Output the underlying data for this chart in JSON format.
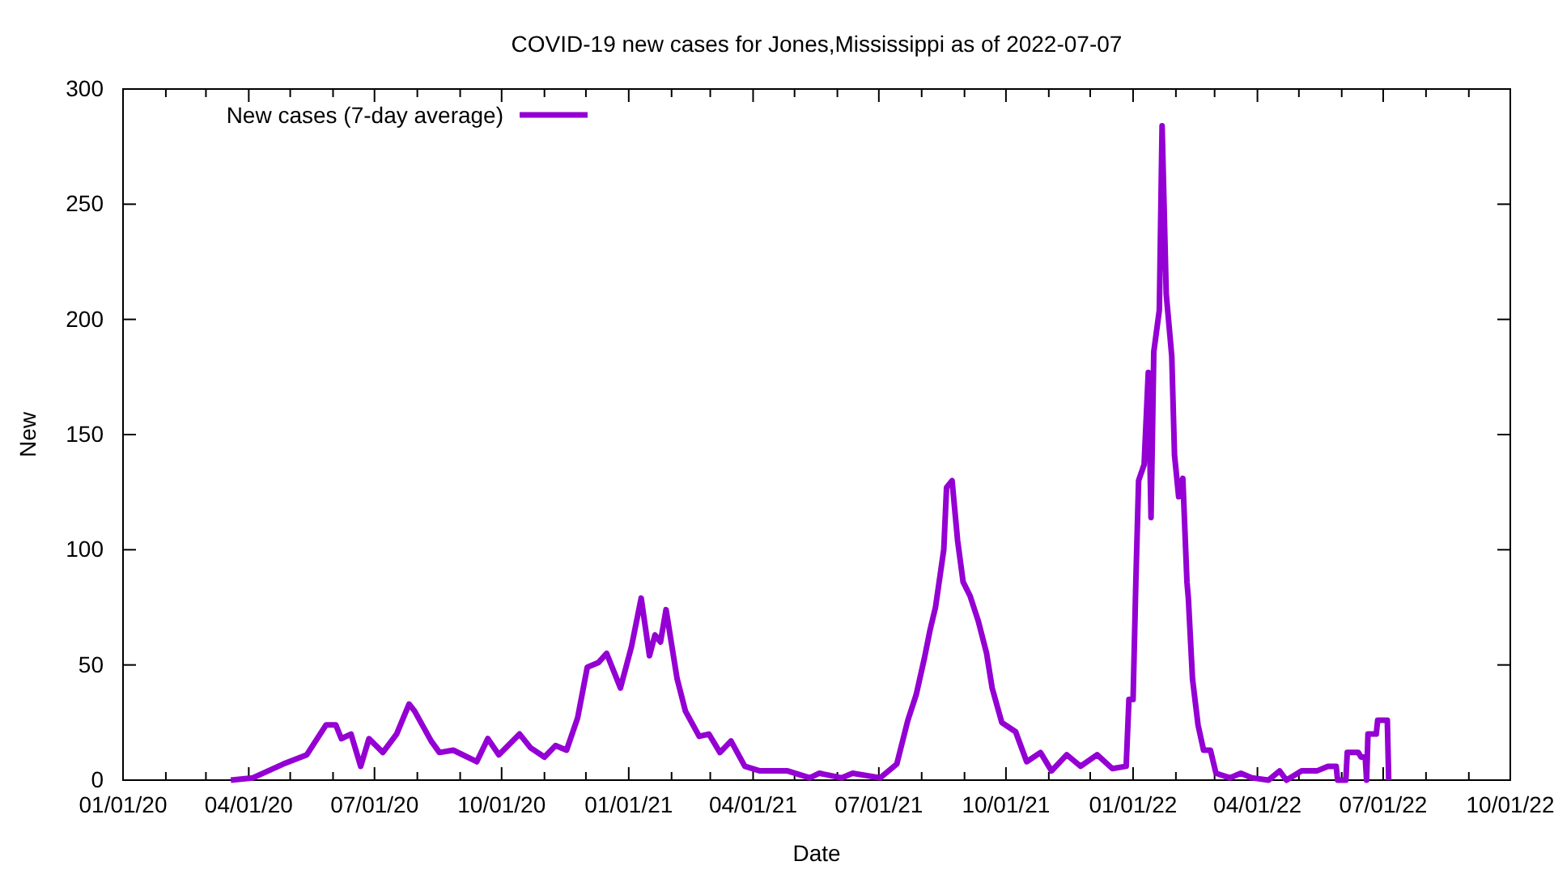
{
  "chart_data": {
    "type": "line",
    "title": "COVID-19 new cases for Jones,Mississippi as of 2022-07-07",
    "xlabel": "Date",
    "ylabel": "New",
    "legend": "top left",
    "grid": false,
    "marker": "none",
    "line_style": "solid",
    "xlim": [
      "2020-01-01",
      "2022-10-01"
    ],
    "xticks": [
      {
        "value": "2020-01-01",
        "label": "01/01/20"
      },
      {
        "value": "2020-02-01",
        "label": null
      },
      {
        "value": "2020-03-01",
        "label": null
      },
      {
        "value": "2020-04-01",
        "label": "04/01/20"
      },
      {
        "value": "2020-05-01",
        "label": null
      },
      {
        "value": "2020-06-01",
        "label": null
      },
      {
        "value": "2020-07-01",
        "label": "07/01/20"
      },
      {
        "value": "2020-08-01",
        "label": null
      },
      {
        "value": "2020-09-01",
        "label": null
      },
      {
        "value": "2020-10-01",
        "label": "10/01/20"
      },
      {
        "value": "2020-11-01",
        "label": null
      },
      {
        "value": "2020-12-01",
        "label": null
      },
      {
        "value": "2021-01-01",
        "label": "01/01/21"
      },
      {
        "value": "2021-02-01",
        "label": null
      },
      {
        "value": "2021-03-01",
        "label": null
      },
      {
        "value": "2021-04-01",
        "label": "04/01/21"
      },
      {
        "value": "2021-05-01",
        "label": null
      },
      {
        "value": "2021-06-01",
        "label": null
      },
      {
        "value": "2021-07-01",
        "label": "07/01/21"
      },
      {
        "value": "2021-08-01",
        "label": null
      },
      {
        "value": "2021-09-01",
        "label": null
      },
      {
        "value": "2021-10-01",
        "label": "10/01/21"
      },
      {
        "value": "2021-11-01",
        "label": null
      },
      {
        "value": "2021-12-01",
        "label": null
      },
      {
        "value": "2022-01-01",
        "label": "01/01/22"
      },
      {
        "value": "2022-02-01",
        "label": null
      },
      {
        "value": "2022-03-01",
        "label": null
      },
      {
        "value": "2022-04-01",
        "label": "04/01/22"
      },
      {
        "value": "2022-05-01",
        "label": null
      },
      {
        "value": "2022-06-01",
        "label": null
      },
      {
        "value": "2022-07-01",
        "label": "07/01/22"
      },
      {
        "value": "2022-08-01",
        "label": null
      },
      {
        "value": "2022-09-01",
        "label": null
      },
      {
        "value": "2022-10-01",
        "label": "10/01/22"
      }
    ],
    "ylim": [
      0,
      300
    ],
    "yticks": [
      0,
      50,
      100,
      150,
      200,
      250,
      300
    ],
    "x": [
      "2020-03-19",
      "2020-04-04",
      "2020-04-26",
      "2020-05-13",
      "2020-05-27",
      "2020-06-03",
      "2020-06-07",
      "2020-06-14",
      "2020-06-21",
      "2020-06-27",
      "2020-07-07",
      "2020-07-17",
      "2020-07-26",
      "2020-07-30",
      "2020-08-11",
      "2020-08-17",
      "2020-08-27",
      "2020-09-13",
      "2020-09-21",
      "2020-09-29",
      "2020-10-14",
      "2020-10-22",
      "2020-11-01",
      "2020-11-09",
      "2020-11-17",
      "2020-11-25",
      "2020-12-02",
      "2020-12-10",
      "2020-12-16",
      "2020-12-26",
      "2021-01-03",
      "2021-01-10",
      "2021-01-16",
      "2021-01-20",
      "2021-01-24",
      "2021-01-28",
      "2021-02-05",
      "2021-02-11",
      "2021-02-21",
      "2021-02-28",
      "2021-03-08",
      "2021-03-16",
      "2021-03-26",
      "2021-04-06",
      "2021-04-26",
      "2021-05-12",
      "2021-05-19",
      "2021-06-04",
      "2021-06-12",
      "2021-07-02",
      "2021-07-14",
      "2021-07-22",
      "2021-07-28",
      "2021-08-03",
      "2021-08-07",
      "2021-08-11",
      "2021-08-17",
      "2021-08-19",
      "2021-08-23",
      "2021-08-27",
      "2021-08-31",
      "2021-09-05",
      "2021-09-11",
      "2021-09-17",
      "2021-09-21",
      "2021-09-28",
      "2021-10-08",
      "2021-10-16",
      "2021-10-26",
      "2021-11-03",
      "2021-11-14",
      "2021-11-24",
      "2021-12-06",
      "2021-12-17",
      "2021-12-27",
      "2021-12-29",
      "2022-01-01",
      "2022-01-03",
      "2022-01-05",
      "2022-01-09",
      "2022-01-12",
      "2022-01-14",
      "2022-01-16",
      "2022-01-20",
      "2022-01-22",
      "2022-01-25",
      "2022-01-29",
      "2022-01-31",
      "2022-02-03",
      "2022-02-06",
      "2022-02-09",
      "2022-02-10",
      "2022-02-13",
      "2022-02-17",
      "2022-02-21",
      "2022-02-26",
      "2022-03-02",
      "2022-03-12",
      "2022-03-20",
      "2022-03-28",
      "2022-04-09",
      "2022-04-17",
      "2022-04-22",
      "2022-05-03",
      "2022-05-14",
      "2022-05-22",
      "2022-05-28",
      "2022-05-29",
      "2022-06-04",
      "2022-06-05",
      "2022-06-13",
      "2022-06-15",
      "2022-06-18",
      "2022-06-19",
      "2022-06-20",
      "2022-06-26",
      "2022-06-27",
      "2022-07-04",
      "2022-07-05"
    ],
    "series": [
      {
        "name": "New cases (7-day average)",
        "color": "#9400d3",
        "values": [
          0,
          1,
          7,
          11,
          24,
          24,
          18,
          20,
          6,
          18,
          12,
          20,
          33,
          30,
          17,
          12,
          13,
          8,
          18,
          11,
          20,
          14,
          10,
          15,
          13,
          27,
          49,
          51,
          55,
          40,
          58,
          79,
          54,
          63,
          60,
          74,
          44,
          30,
          19,
          20,
          12,
          17,
          6,
          4,
          4,
          1,
          3,
          1,
          3,
          1,
          7,
          26,
          37,
          53,
          65,
          75,
          100,
          127,
          130,
          104,
          86,
          80,
          69,
          55,
          40,
          25,
          21,
          8,
          12,
          4,
          11,
          6,
          11,
          5,
          6,
          35,
          35,
          86,
          130,
          137,
          177,
          114,
          186,
          204,
          284,
          211,
          184,
          141,
          123,
          131,
          86,
          79,
          44,
          24,
          13,
          13,
          3,
          1,
          3,
          1,
          0,
          4,
          0,
          4,
          4,
          6,
          6,
          0,
          0,
          12,
          12,
          10,
          10,
          0,
          20,
          20,
          26,
          26,
          0
        ]
      }
    ]
  }
}
